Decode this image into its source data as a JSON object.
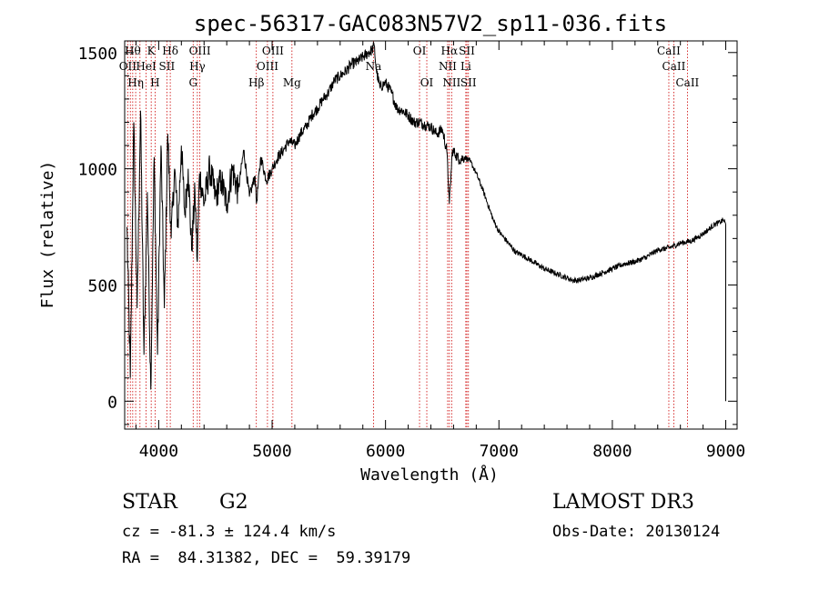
{
  "chart_data": {
    "type": "line",
    "title": "spec-56317-GAC083N57V2_sp11-036.fits",
    "xlabel": "Wavelength (Å)",
    "ylabel": "Flux (relative)",
    "xlim": [
      3700,
      9100
    ],
    "ylim": [
      -120,
      1550
    ],
    "xticks": [
      4000,
      5000,
      6000,
      7000,
      8000,
      9000
    ],
    "xticklabels": [
      "4000",
      "5000",
      "6000",
      "7000",
      "8000",
      "9000"
    ],
    "yticks": [
      0,
      500,
      1000,
      1500
    ],
    "yticklabels": [
      "0",
      "500",
      "1000",
      "1500"
    ],
    "grid": false,
    "series": [
      {
        "name": "spectrum",
        "color": "#000000",
        "x": [
          3720,
          3750,
          3780,
          3810,
          3840,
          3870,
          3900,
          3930,
          3960,
          3990,
          4020,
          4050,
          4080,
          4110,
          4140,
          4170,
          4200,
          4230,
          4260,
          4290,
          4320,
          4340,
          4360,
          4400,
          4450,
          4500,
          4550,
          4600,
          4650,
          4700,
          4750,
          4800,
          4850,
          4862,
          4900,
          4950,
          5000,
          5050,
          5100,
          5150,
          5200,
          5250,
          5300,
          5350,
          5400,
          5450,
          5500,
          5550,
          5600,
          5650,
          5700,
          5750,
          5800,
          5850,
          5880,
          5900,
          5920,
          5950,
          6000,
          6050,
          6100,
          6150,
          6200,
          6250,
          6300,
          6350,
          6400,
          6450,
          6500,
          6540,
          6563,
          6590,
          6620,
          6650,
          6700,
          6750,
          6800,
          6850,
          6900,
          6950,
          7000,
          7050,
          7100,
          7150,
          7200,
          7300,
          7400,
          7500,
          7600,
          7650,
          7700,
          7800,
          7900,
          8000,
          8100,
          8200,
          8300,
          8400,
          8500,
          8600,
          8700,
          8800,
          8850,
          8900,
          8950,
          8980,
          9000,
          9000,
          9000
        ],
        "values": [
          750,
          100,
          1200,
          400,
          1250,
          200,
          900,
          50,
          1050,
          200,
          1100,
          400,
          1150,
          700,
          1000,
          750,
          1100,
          800,
          1000,
          650,
          900,
          600,
          980,
          850,
          1000,
          880,
          950,
          850,
          1000,
          900,
          1080,
          880,
          970,
          850,
          1050,
          950,
          1000,
          1050,
          1080,
          1120,
          1100,
          1150,
          1180,
          1230,
          1260,
          1300,
          1330,
          1380,
          1400,
          1420,
          1450,
          1460,
          1480,
          1500,
          1510,
          1530,
          1420,
          1350,
          1370,
          1330,
          1260,
          1250,
          1230,
          1200,
          1200,
          1190,
          1180,
          1150,
          1170,
          1080,
          850,
          1080,
          1060,
          1040,
          1050,
          1030,
          980,
          920,
          850,
          780,
          730,
          700,
          670,
          640,
          630,
          600,
          570,
          550,
          530,
          520,
          520,
          530,
          550,
          570,
          590,
          600,
          620,
          650,
          660,
          680,
          690,
          720,
          740,
          760,
          770,
          780,
          760,
          0,
          300
        ]
      }
    ],
    "lines": [
      {
        "x": 3727,
        "label": "OII",
        "row": 1
      },
      {
        "x": 3750,
        "label": "",
        "row": 0
      },
      {
        "x": 3771,
        "label": "Hθ",
        "row": 0
      },
      {
        "x": 3797,
        "label": "Hη",
        "row": 2
      },
      {
        "x": 3835,
        "label": "",
        "row": 0
      },
      {
        "x": 3889,
        "label": "HeI",
        "row": 1
      },
      {
        "x": 3934,
        "label": "K",
        "row": 0
      },
      {
        "x": 3968,
        "label": "H",
        "row": 2
      },
      {
        "x": 4072,
        "label": "SII",
        "row": 1
      },
      {
        "x": 4102,
        "label": "Hδ",
        "row": 0
      },
      {
        "x": 4304,
        "label": "G",
        "row": 2
      },
      {
        "x": 4341,
        "label": "Hγ",
        "row": 1
      },
      {
        "x": 4363,
        "label": "OIII",
        "row": 0
      },
      {
        "x": 4861,
        "label": "Hβ",
        "row": 2
      },
      {
        "x": 4959,
        "label": "OIII",
        "row": 1
      },
      {
        "x": 5007,
        "label": "OIII",
        "row": 0
      },
      {
        "x": 5175,
        "label": "Mg",
        "row": 2
      },
      {
        "x": 5894,
        "label": "Na",
        "row": 1
      },
      {
        "x": 6300,
        "label": "OI",
        "row": 0
      },
      {
        "x": 6364,
        "label": "OI",
        "row": 2
      },
      {
        "x": 6548,
        "label": "NII",
        "row": 1
      },
      {
        "x": 6563,
        "label": "Hα",
        "row": 0
      },
      {
        "x": 6583,
        "label": "NII",
        "row": 2
      },
      {
        "x": 6708,
        "label": "Li",
        "row": 1
      },
      {
        "x": 6717,
        "label": "SII",
        "row": 0
      },
      {
        "x": 6731,
        "label": "SII",
        "row": 2
      },
      {
        "x": 8498,
        "label": "CaII",
        "row": 0
      },
      {
        "x": 8542,
        "label": "CaII",
        "row": 1
      },
      {
        "x": 8662,
        "label": "CaII",
        "row": 2
      }
    ],
    "line_color": "#cc0000"
  },
  "info": {
    "class": "STAR",
    "subclass": "G2",
    "survey": "LAMOST DR3",
    "cz": "cz = -81.3 ± 124.4 km/s",
    "obs_date": "Obs-Date: 20130124",
    "coords": "RA =  84.31382, DEC =  59.39179"
  }
}
